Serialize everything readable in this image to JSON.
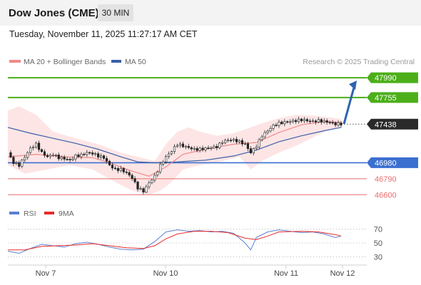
{
  "header": {
    "title": "Dow Jones (CME)",
    "timeframe": "30 MIN"
  },
  "timestamp": "Tuesday, November 11, 2025 11:27:17 AM CET",
  "legend": {
    "ma20": "MA 20 + Bollinger Bands",
    "ma50": "MA 50",
    "credit": "Research © 2025 Trading Central",
    "rsi": "RSI",
    "rsi_ma": "9MA"
  },
  "colors": {
    "ma20": "#f08a8a",
    "band_fill": "#fde0e0",
    "ma50": "#3a5fa8",
    "resistance": "#4caf1a",
    "support_blue": "#3a6fd0",
    "support_red": "#e86c6c",
    "last_price": "#2a2a2a",
    "arrow": "#2d64b0",
    "rsi": "#5b7fd1",
    "rsi_ma": "#e82a2a"
  },
  "chart_data": [
    {
      "type": "candlestick",
      "y_range": [
        46560,
        48050
      ],
      "x_ticks": [
        "Nov 7",
        "Nov 10",
        "Nov 11",
        "Nov 12"
      ],
      "levels": [
        {
          "value": 47990,
          "label": "47990",
          "kind": "resistance"
        },
        {
          "value": 47755,
          "label": "47755",
          "kind": "resistance"
        },
        {
          "value": 47438,
          "label": "47438",
          "kind": "last"
        },
        {
          "value": 46980,
          "label": "46980",
          "kind": "support_blue"
        },
        {
          "value": 46790,
          "label": "46790",
          "kind": "support_red"
        },
        {
          "value": 46600,
          "label": "46600",
          "kind": "support_red"
        }
      ],
      "forecast_arrow": {
        "from": 47440,
        "to": 47990
      },
      "close_path": [
        [
          0,
          47100
        ],
        [
          2,
          46980
        ],
        [
          4,
          46950
        ],
        [
          6,
          47050
        ],
        [
          8,
          47150
        ],
        [
          10,
          47200
        ],
        [
          12,
          47100
        ],
        [
          14,
          47050
        ],
        [
          16,
          47080
        ],
        [
          18,
          47040
        ],
        [
          20,
          47030
        ],
        [
          22,
          47010
        ],
        [
          24,
          47060
        ],
        [
          26,
          47070
        ],
        [
          28,
          47100
        ],
        [
          30,
          47090
        ],
        [
          32,
          47060
        ],
        [
          34,
          47040
        ],
        [
          36,
          46950
        ],
        [
          38,
          46900
        ],
        [
          40,
          46900
        ],
        [
          42,
          46860
        ],
        [
          44,
          46800
        ],
        [
          46,
          46680
        ],
        [
          48,
          46640
        ],
        [
          50,
          46740
        ],
        [
          52,
          46820
        ],
        [
          54,
          46950
        ],
        [
          56,
          47050
        ],
        [
          58,
          47120
        ],
        [
          60,
          47200
        ],
        [
          62,
          47180
        ],
        [
          64,
          47160
        ],
        [
          66,
          47140
        ],
        [
          68,
          47140
        ],
        [
          70,
          47150
        ],
        [
          72,
          47160
        ],
        [
          74,
          47170
        ],
        [
          76,
          47230
        ],
        [
          78,
          47250
        ],
        [
          80,
          47250
        ],
        [
          82,
          47230
        ],
        [
          84,
          47200
        ],
        [
          86,
          47100
        ],
        [
          88,
          47180
        ],
        [
          90,
          47300
        ],
        [
          92,
          47360
        ],
        [
          94,
          47420
        ],
        [
          96,
          47450
        ],
        [
          98,
          47460
        ],
        [
          100,
          47470
        ],
        [
          102,
          47480
        ],
        [
          104,
          47490
        ],
        [
          106,
          47480
        ],
        [
          108,
          47470
        ],
        [
          110,
          47480
        ],
        [
          112,
          47470
        ],
        [
          114,
          47460
        ],
        [
          116,
          47440
        ],
        [
          118,
          47440
        ]
      ],
      "ma20_path": [
        [
          0,
          47050
        ],
        [
          10,
          47080
        ],
        [
          20,
          47050
        ],
        [
          30,
          47040
        ],
        [
          36,
          46980
        ],
        [
          44,
          46880
        ],
        [
          50,
          46820
        ],
        [
          56,
          46930
        ],
        [
          62,
          47080
        ],
        [
          70,
          47140
        ],
        [
          80,
          47200
        ],
        [
          88,
          47220
        ],
        [
          96,
          47340
        ],
        [
          104,
          47430
        ],
        [
          112,
          47470
        ],
        [
          118,
          47460
        ]
      ],
      "ma50_path": [
        [
          0,
          47400
        ],
        [
          8,
          47330
        ],
        [
          16,
          47270
        ],
        [
          24,
          47210
        ],
        [
          32,
          47140
        ],
        [
          40,
          47050
        ],
        [
          46,
          46990
        ],
        [
          52,
          46980
        ],
        [
          60,
          46990
        ],
        [
          70,
          47010
        ],
        [
          80,
          47060
        ],
        [
          88,
          47130
        ],
        [
          96,
          47230
        ],
        [
          104,
          47300
        ],
        [
          112,
          47360
        ],
        [
          118,
          47400
        ]
      ],
      "band_upper": [
        [
          0,
          47600
        ],
        [
          4,
          47650
        ],
        [
          10,
          47550
        ],
        [
          16,
          47350
        ],
        [
          24,
          47270
        ],
        [
          32,
          47200
        ],
        [
          40,
          47100
        ],
        [
          46,
          47050
        ],
        [
          52,
          47000
        ],
        [
          56,
          47200
        ],
        [
          60,
          47350
        ],
        [
          64,
          47400
        ],
        [
          68,
          47350
        ],
        [
          74,
          47300
        ],
        [
          80,
          47330
        ],
        [
          86,
          47400
        ],
        [
          90,
          47450
        ],
        [
          96,
          47510
        ],
        [
          102,
          47550
        ],
        [
          108,
          47540
        ],
        [
          114,
          47520
        ],
        [
          118,
          47500
        ]
      ],
      "band_lower": [
        [
          0,
          46950
        ],
        [
          6,
          46850
        ],
        [
          14,
          46900
        ],
        [
          22,
          46950
        ],
        [
          30,
          46900
        ],
        [
          38,
          46750
        ],
        [
          44,
          46650
        ],
        [
          50,
          46600
        ],
        [
          54,
          46650
        ],
        [
          58,
          46750
        ],
        [
          62,
          46900
        ],
        [
          68,
          46950
        ],
        [
          76,
          47000
        ],
        [
          82,
          47050
        ],
        [
          86,
          46900
        ],
        [
          90,
          47000
        ],
        [
          96,
          47100
        ],
        [
          102,
          47180
        ],
        [
          108,
          47280
        ],
        [
          114,
          47380
        ],
        [
          118,
          47400
        ]
      ]
    },
    {
      "type": "line",
      "name": "RSI",
      "y_range": [
        20,
        80
      ],
      "y_ticks": [
        70,
        50,
        30
      ],
      "series": [
        {
          "name": "RSI",
          "values": [
            [
              0,
              38
            ],
            [
              4,
              35
            ],
            [
              8,
              42
            ],
            [
              12,
              48
            ],
            [
              16,
              46
            ],
            [
              20,
              44
            ],
            [
              24,
              49
            ],
            [
              28,
              51
            ],
            [
              32,
              48
            ],
            [
              36,
              44
            ],
            [
              40,
              41
            ],
            [
              44,
              40
            ],
            [
              48,
              41
            ],
            [
              52,
              52
            ],
            [
              56,
              66
            ],
            [
              60,
              69
            ],
            [
              64,
              67
            ],
            [
              68,
              68
            ],
            [
              72,
              66
            ],
            [
              76,
              67
            ],
            [
              80,
              64
            ],
            [
              84,
              50
            ],
            [
              86,
              40
            ],
            [
              88,
              58
            ],
            [
              92,
              66
            ],
            [
              96,
              69
            ],
            [
              100,
              67
            ],
            [
              104,
              65
            ],
            [
              108,
              66
            ],
            [
              112,
              63
            ],
            [
              116,
              58
            ],
            [
              118,
              60
            ]
          ]
        },
        {
          "name": "9MA",
          "values": [
            [
              0,
              40
            ],
            [
              6,
              40
            ],
            [
              12,
              45
            ],
            [
              18,
              46
            ],
            [
              24,
              47
            ],
            [
              30,
              49
            ],
            [
              36,
              46
            ],
            [
              42,
              43
            ],
            [
              48,
              42
            ],
            [
              52,
              46
            ],
            [
              56,
              56
            ],
            [
              60,
              63
            ],
            [
              66,
              67
            ],
            [
              72,
              67
            ],
            [
              78,
              65
            ],
            [
              84,
              57
            ],
            [
              88,
              55
            ],
            [
              92,
              60
            ],
            [
              96,
              66
            ],
            [
              104,
              67
            ],
            [
              110,
              66
            ],
            [
              116,
              62
            ],
            [
              118,
              60
            ]
          ]
        }
      ]
    }
  ]
}
